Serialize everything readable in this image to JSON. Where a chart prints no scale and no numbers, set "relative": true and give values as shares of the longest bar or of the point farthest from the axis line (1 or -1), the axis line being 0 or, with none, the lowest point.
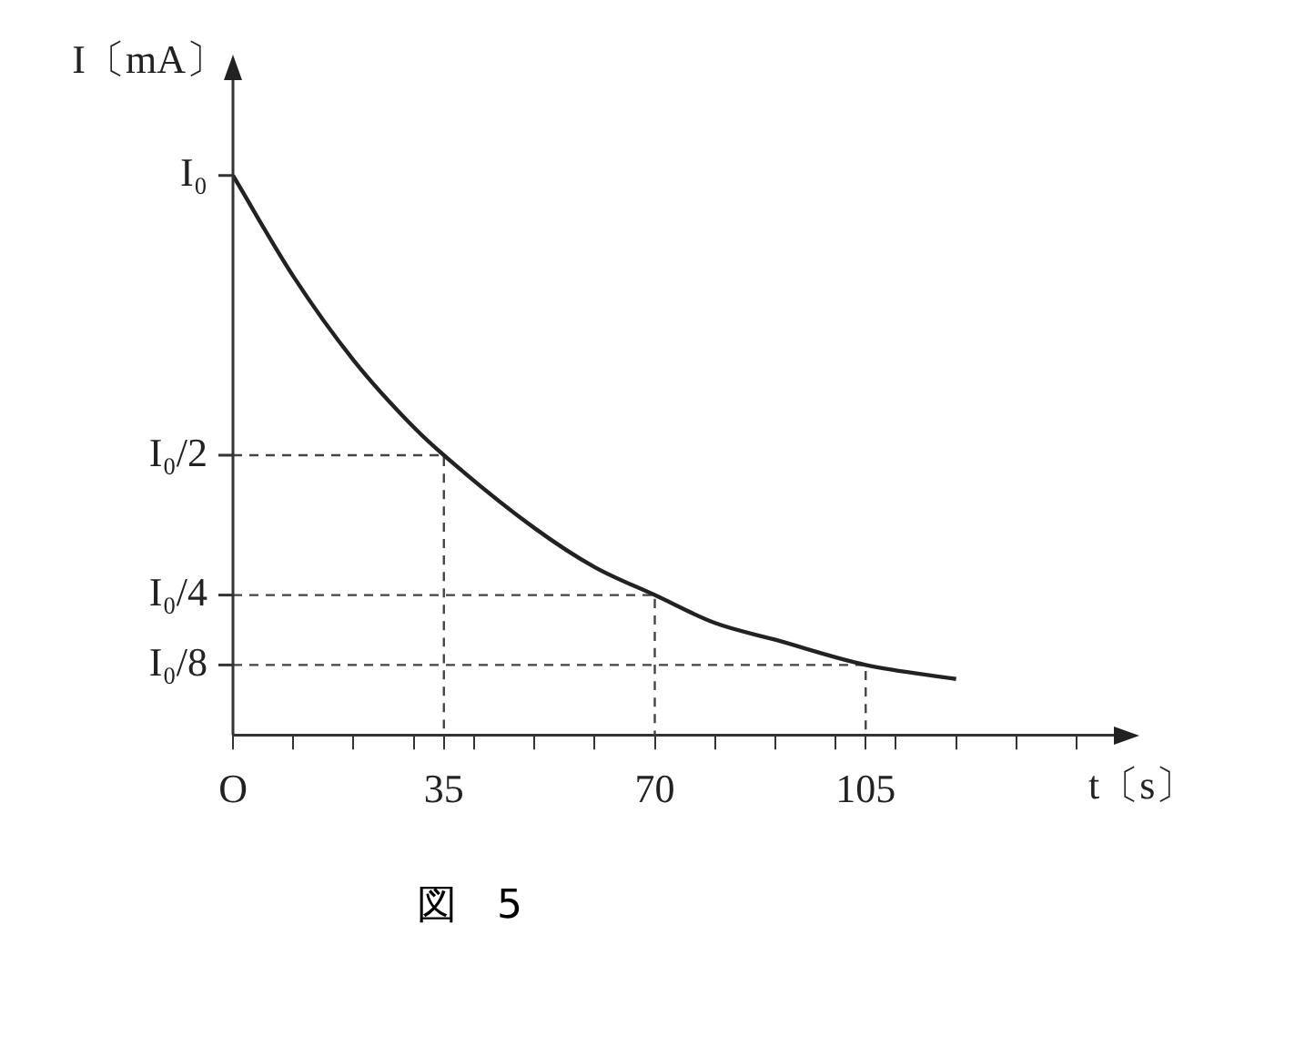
{
  "chart_data": {
    "type": "line",
    "xlabel": "t〔s〕",
    "ylabel": "I〔mA〕",
    "annotations": [
      "図　5",
      "I₀",
      "I₀/2",
      "I₀/4",
      "I₀/8"
    ],
    "relative": true,
    "xlim": [
      0,
      148
    ],
    "xticks": [
      {
        "value": 0,
        "label": "O"
      },
      {
        "value": 10,
        "label": null
      },
      {
        "value": 20,
        "label": null
      },
      {
        "value": 30,
        "label": null
      },
      35,
      {
        "value": 40,
        "label": null
      },
      {
        "value": 50,
        "label": null
      },
      {
        "value": 60,
        "label": null
      },
      70,
      {
        "value": 80,
        "label": null
      },
      {
        "value": 90,
        "label": null
      },
      {
        "value": 100,
        "label": null
      },
      105,
      {
        "value": 110,
        "label": null
      },
      {
        "value": 120,
        "label": null
      },
      {
        "value": 130,
        "label": null
      },
      {
        "value": 140,
        "label": null
      }
    ],
    "grid": false,
    "legend": false,
    "marker": "none",
    "series": [
      {
        "color": "#222222",
        "line_style": "solid",
        "x": [
          0,
          10,
          20,
          30,
          35,
          50,
          60,
          70,
          80,
          90,
          105,
          120
        ],
        "values": [
          1,
          0.82,
          0.67,
          0.55,
          0.5,
          0.37,
          0.3,
          0.25,
          0.2,
          0.17,
          0.125,
          0.1
        ]
      },
      {
        "color": "#444444",
        "line_style": "dashed",
        "x": [
          0,
          35,
          35
        ],
        "values": [
          0.5,
          0.5,
          0
        ]
      },
      {
        "color": "#444444",
        "line_style": "dashed",
        "x": [
          0,
          70,
          70
        ],
        "values": [
          0.25,
          0.25,
          0
        ]
      },
      {
        "color": "#444444",
        "line_style": "dashed",
        "x": [
          0,
          105,
          105
        ],
        "values": [
          0.125,
          0.125,
          0
        ]
      }
    ]
  }
}
